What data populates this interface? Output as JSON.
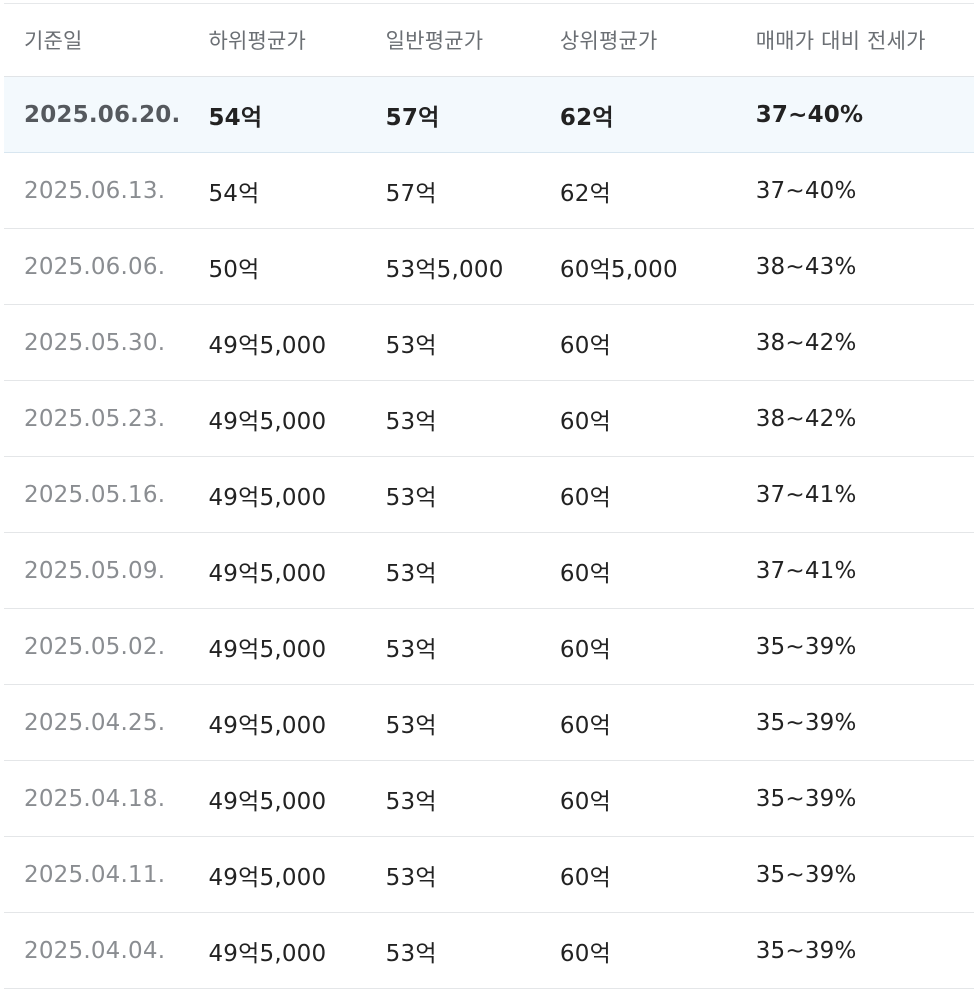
{
  "table": {
    "headers": [
      "기준일",
      "하위평균가",
      "일반평균가",
      "상위평균가",
      "매매가 대비 전세가"
    ],
    "rows": [
      [
        "2025.06.20.",
        "54억",
        "57억",
        "62억",
        "37~40%"
      ],
      [
        "2025.06.13.",
        "54억",
        "57억",
        "62억",
        "37~40%"
      ],
      [
        "2025.06.06.",
        "50억",
        "53억5,000",
        "60억5,000",
        "38~43%"
      ],
      [
        "2025.05.30.",
        "49억5,000",
        "53억",
        "60억",
        "38~42%"
      ],
      [
        "2025.05.23.",
        "49억5,000",
        "53억",
        "60억",
        "38~42%"
      ],
      [
        "2025.05.16.",
        "49억5,000",
        "53억",
        "60억",
        "37~41%"
      ],
      [
        "2025.05.09.",
        "49억5,000",
        "53억",
        "60억",
        "37~41%"
      ],
      [
        "2025.05.02.",
        "49억5,000",
        "53억",
        "60억",
        "35~39%"
      ],
      [
        "2025.04.25.",
        "49억5,000",
        "53억",
        "60억",
        "35~39%"
      ],
      [
        "2025.04.18.",
        "49억5,000",
        "53억",
        "60억",
        "35~39%"
      ],
      [
        "2025.04.11.",
        "49억5,000",
        "53억",
        "60억",
        "35~39%"
      ],
      [
        "2025.04.04.",
        "49억5,000",
        "53억",
        "60억",
        "35~39%"
      ]
    ],
    "highlight_color": "#f3f9fd"
  }
}
